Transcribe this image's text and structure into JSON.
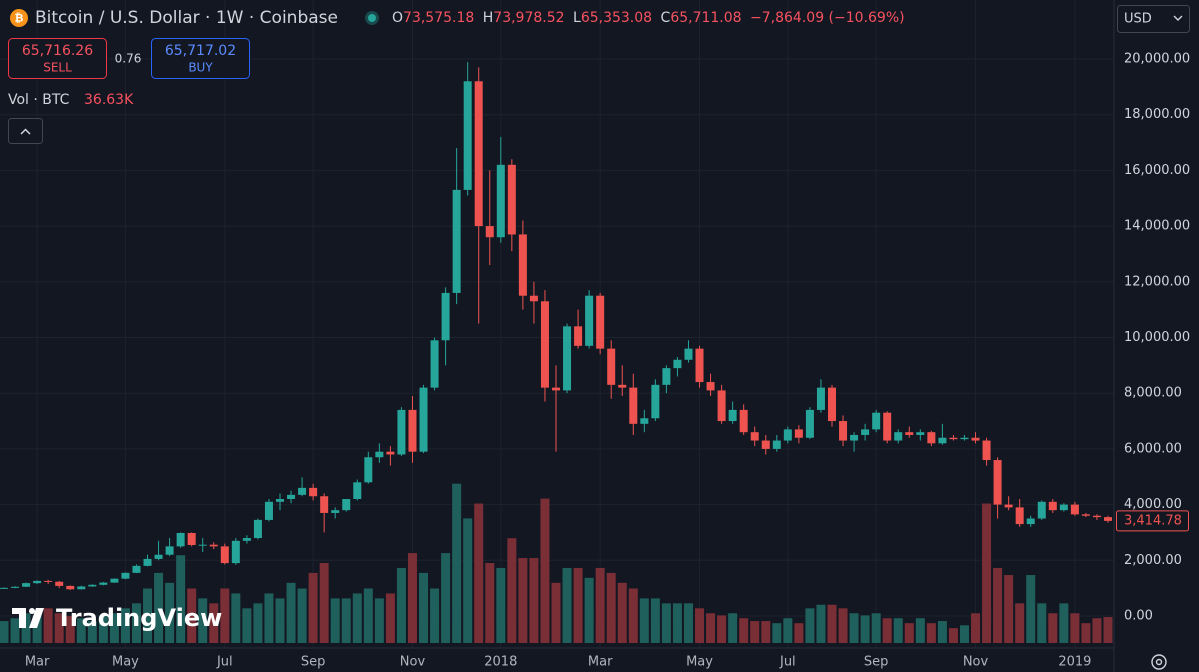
{
  "header": {
    "title": "Bitcoin / U.S. Dollar · 1W · Coinbase",
    "ohlc": [
      {
        "key": "O",
        "value": "73,575.18"
      },
      {
        "key": "H",
        "value": "73,978.52"
      },
      {
        "key": "L",
        "value": "65,353.08"
      },
      {
        "key": "C",
        "value": "65,711.08"
      }
    ],
    "change": "−7,864.09 (−10.69%)",
    "sell_price": "65,716.26",
    "sell_label": "SELL",
    "spread": "0.76",
    "buy_price": "65,717.02",
    "buy_label": "BUY",
    "volume_title": "Vol · BTC",
    "currency": "USD",
    "brand": "TradingView"
  },
  "chart_data": {
    "type": "candlestick",
    "categories": [
      null,
      null,
      null,
      "Mar",
      null,
      null,
      null,
      null,
      null,
      null,
      null,
      "May",
      null,
      null,
      null,
      null,
      null,
      null,
      null,
      null,
      "Jul",
      null,
      null,
      null,
      null,
      null,
      null,
      null,
      "Sep",
      null,
      null,
      null,
      null,
      null,
      null,
      null,
      null,
      "Nov",
      null,
      null,
      null,
      null,
      null,
      null,
      null,
      "2018",
      null,
      null,
      null,
      null,
      null,
      null,
      null,
      null,
      "Mar",
      null,
      null,
      null,
      null,
      null,
      null,
      null,
      null,
      "May",
      null,
      null,
      null,
      null,
      null,
      null,
      null,
      "Jul",
      null,
      null,
      null,
      null,
      null,
      null,
      null,
      "Sep",
      null,
      null,
      null,
      null,
      null,
      null,
      null,
      null,
      "Nov",
      null,
      null,
      null,
      null,
      null,
      null,
      null,
      null,
      "2019",
      null,
      null,
      null
    ],
    "open": [
      1000,
      1010,
      1050,
      1180,
      1260,
      1230,
      1080,
      960,
      1060,
      1120,
      1200,
      1340,
      1550,
      1800,
      2050,
      2200,
      2500,
      2980,
      2550,
      2560,
      2500,
      1900,
      2700,
      2800,
      3450,
      4100,
      4200,
      4350,
      4600,
      4300,
      3700,
      3800,
      4200,
      4800,
      5700,
      5900,
      5800,
      7400,
      5900,
      8200,
      9900,
      11600,
      15300,
      19200,
      14000,
      13600,
      16200,
      13700,
      11500,
      11300,
      8200,
      8100,
      10400,
      9700,
      11500,
      9600,
      8300,
      8200,
      6900,
      7100,
      8300,
      8900,
      9200,
      9600,
      8400,
      8100,
      7000,
      7400,
      6600,
      6300,
      6000,
      6300,
      6700,
      6400,
      7400,
      8200,
      7000,
      6300,
      6500,
      6700,
      7300,
      6300,
      6600,
      6500,
      6600,
      6200,
      6400,
      6350,
      6400,
      6300,
      5600,
      4000,
      3900,
      3300,
      3500,
      4100,
      3800,
      4000,
      3650,
      3600,
      3550
    ],
    "high": [
      1030,
      1070,
      1200,
      1280,
      1300,
      1260,
      1100,
      1090,
      1140,
      1220,
      1350,
      1560,
      1850,
      2200,
      2700,
      2800,
      3000,
      3000,
      2800,
      2650,
      2600,
      2800,
      2900,
      3500,
      4200,
      4400,
      4500,
      4980,
      4750,
      4400,
      3900,
      4200,
      4900,
      5900,
      6200,
      6100,
      7500,
      7900,
      8300,
      10000,
      11800,
      16800,
      19890,
      19700,
      16000,
      17200,
      16400,
      14200,
      12000,
      11700,
      9000,
      10500,
      11000,
      11700,
      11600,
      9900,
      9000,
      8700,
      7400,
      8500,
      9000,
      9300,
      9900,
      9700,
      8700,
      8300,
      7700,
      7600,
      6800,
      6500,
      6500,
      6800,
      6850,
      7500,
      8500,
      8300,
      7200,
      6600,
      6900,
      7400,
      7350,
      6700,
      6800,
      6700,
      6650,
      6900,
      6500,
      6500,
      6600,
      6400,
      5700,
      4300,
      4200,
      3600,
      4150,
      4200,
      4050,
      4100,
      3700,
      3650,
      3600
    ],
    "low": [
      990,
      1000,
      1040,
      1150,
      1150,
      1000,
      930,
      950,
      1050,
      1100,
      1190,
      1320,
      1540,
      1780,
      2000,
      2150,
      2450,
      2500,
      2300,
      2400,
      1850,
      1840,
      2600,
      2750,
      3400,
      3800,
      4050,
      4300,
      4150,
      3000,
      3500,
      3750,
      4150,
      4750,
      5500,
      5400,
      5750,
      5500,
      5850,
      8100,
      9000,
      11200,
      15100,
      10500,
      12600,
      13400,
      13100,
      11000,
      10500,
      7700,
      5900,
      8000,
      9600,
      9600,
      9400,
      7800,
      7900,
      6500,
      6600,
      7000,
      8000,
      8600,
      9100,
      8200,
      7900,
      6900,
      6900,
      6500,
      6100,
      5800,
      5900,
      6200,
      6200,
      6350,
      7300,
      6800,
      6100,
      5900,
      6300,
      6600,
      6200,
      6200,
      6400,
      6300,
      6100,
      6150,
      6300,
      6300,
      6200,
      5400,
      3500,
      3800,
      3200,
      3200,
      3450,
      3700,
      3750,
      3600,
      3550,
      3450,
      3350
    ],
    "close": [
      1010,
      1050,
      1180,
      1260,
      1230,
      1080,
      960,
      1060,
      1120,
      1200,
      1340,
      1550,
      1800,
      2050,
      2200,
      2500,
      2980,
      2550,
      2560,
      2500,
      1900,
      2700,
      2800,
      3450,
      4100,
      4200,
      4350,
      4600,
      4300,
      3700,
      3800,
      4200,
      4800,
      5700,
      5900,
      5800,
      7400,
      5900,
      8200,
      9900,
      11600,
      15300,
      19200,
      14000,
      13600,
      16200,
      13700,
      11500,
      11300,
      8200,
      8100,
      10400,
      9700,
      11500,
      9600,
      8300,
      8200,
      6900,
      7100,
      8300,
      8900,
      9200,
      9600,
      8400,
      8100,
      7000,
      7400,
      6600,
      6300,
      6000,
      6300,
      6700,
      6400,
      7400,
      8200,
      7000,
      6300,
      6500,
      6700,
      7300,
      6300,
      6600,
      6500,
      6600,
      6200,
      6400,
      6350,
      6400,
      6300,
      5600,
      4000,
      3900,
      3300,
      3500,
      4100,
      3800,
      4000,
      3650,
      3600,
      3550,
      3414.78
    ],
    "last_price_label": "3,414.78",
    "volume": [
      31000,
      35000,
      42000,
      39000,
      49000,
      42000,
      38000,
      35000,
      31000,
      39000,
      42000,
      49000,
      56000,
      77000,
      99000,
      85000,
      124000,
      77000,
      63000,
      56000,
      77000,
      70000,
      49000,
      56000,
      70000,
      63000,
      85000,
      77000,
      99000,
      113000,
      63000,
      63000,
      70000,
      77000,
      63000,
      70000,
      106000,
      127000,
      99000,
      77000,
      127000,
      225000,
      176000,
      197000,
      113000,
      106000,
      148000,
      120000,
      120000,
      204000,
      85000,
      106000,
      106000,
      92000,
      106000,
      99000,
      85000,
      77000,
      63000,
      63000,
      56000,
      56000,
      56000,
      49000,
      42000,
      39000,
      42000,
      35000,
      31000,
      31000,
      28000,
      35000,
      28000,
      49000,
      54000,
      54000,
      49000,
      42000,
      39000,
      42000,
      35000,
      35000,
      28000,
      35000,
      28000,
      31000,
      21000,
      25000,
      42000,
      197000,
      106000,
      96000,
      56000,
      96000,
      56000,
      42000,
      56000,
      42000,
      28000,
      35000,
      36630
    ],
    "volume_last_label": "36.63K",
    "volume_ylim": [
      0,
      250000
    ],
    "up_color": "#26a69a",
    "down_color": "#ef5350",
    "volume_up_color": "#1f5f5c",
    "volume_down_color": "#7a2e35",
    "ylim": [
      -1149,
      22118
    ],
    "yticks": [
      {
        "value": 0,
        "label": "0.00"
      },
      {
        "value": 2000,
        "label": "2,000.00"
      },
      {
        "value": 4000,
        "label": "4,000.00"
      },
      {
        "value": 6000,
        "label": "6,000.00"
      },
      {
        "value": 8000,
        "label": "8,000.00"
      },
      {
        "value": 10000,
        "label": "10,000.00"
      },
      {
        "value": 12000,
        "label": "12,000.00"
      },
      {
        "value": 14000,
        "label": "14,000.00"
      },
      {
        "value": 16000,
        "label": "16,000.00"
      },
      {
        "value": 18000,
        "label": "18,000.00"
      },
      {
        "value": 20000,
        "label": "20,000.00"
      }
    ],
    "grid": true
  }
}
